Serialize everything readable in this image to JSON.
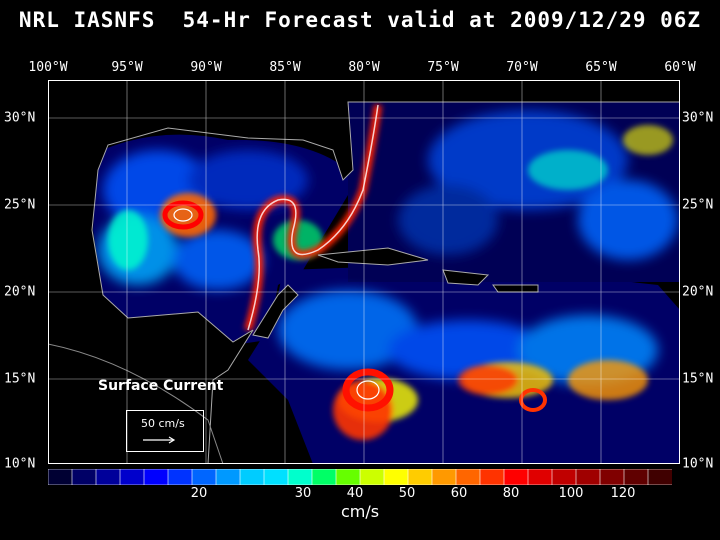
{
  "title": "NRL IASNFS  54-Hr Forecast valid at 2009/12/29 06Z",
  "longitude_labels": [
    "100°W",
    "95°W",
    "90°W",
    "85°W",
    "80°W",
    "75°W",
    "70°W",
    "65°W",
    "60°W"
  ],
  "latitude_labels": [
    "30°N",
    "25°N",
    "20°N",
    "15°N",
    "10°N"
  ],
  "map_title": "Surface Current",
  "reference_vector_label": "50 cm/s",
  "colorbar": {
    "units": "cm/s",
    "tick_labels": [
      "20",
      "30",
      "40",
      "50",
      "60",
      "80",
      "100",
      "120"
    ],
    "colors": [
      "#000033",
      "#000066",
      "#00009a",
      "#0000cc",
      "#0000ff",
      "#0033ff",
      "#0066ff",
      "#0099ff",
      "#00ccff",
      "#00e0ff",
      "#00ffcc",
      "#00ff66",
      "#66ff00",
      "#ccff00",
      "#ffff00",
      "#ffcc00",
      "#ff9900",
      "#ff6600",
      "#ff3300",
      "#ff0000",
      "#e00000",
      "#c00000",
      "#a00000",
      "#800000",
      "#600000",
      "#400000"
    ]
  },
  "colors": {
    "background": "#000000",
    "ocean_low": "#000033",
    "text": "#ffffff"
  }
}
